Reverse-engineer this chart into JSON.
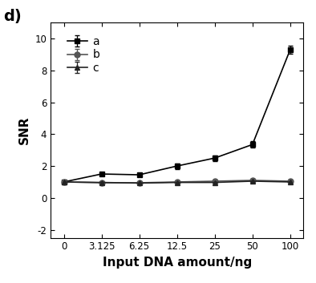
{
  "x_labels": [
    "0",
    "3.125",
    "6.25",
    "12.5",
    "25",
    "50",
    "100"
  ],
  "x_positions": [
    0,
    1,
    2,
    3,
    4,
    5,
    6
  ],
  "series_a": {
    "label": "a",
    "y": [
      1.0,
      1.5,
      1.45,
      2.0,
      2.5,
      3.35,
      9.3
    ],
    "yerr": [
      0.05,
      0.12,
      0.12,
      0.18,
      0.18,
      0.2,
      0.25
    ],
    "color": "#000000",
    "marker": "s",
    "markersize": 5
  },
  "series_b": {
    "label": "b",
    "y": [
      1.0,
      0.95,
      0.95,
      1.0,
      1.05,
      1.1,
      1.05
    ],
    "yerr": [
      0.05,
      0.05,
      0.05,
      0.06,
      0.06,
      0.08,
      0.06
    ],
    "color": "#555555",
    "marker": "o",
    "markersize": 5
  },
  "series_c": {
    "label": "c",
    "y": [
      1.0,
      0.97,
      0.93,
      0.97,
      0.97,
      1.05,
      1.0
    ],
    "yerr": [
      0.05,
      0.05,
      0.05,
      0.05,
      0.05,
      0.07,
      0.05
    ],
    "color": "#222222",
    "marker": "^",
    "markersize": 5
  },
  "xlabel": "Input DNA amount/ng",
  "ylabel": "SNR",
  "panel_label": "d)",
  "ylim": [
    -2.5,
    11.0
  ],
  "yticks": [
    -2,
    0,
    2,
    4,
    6,
    8,
    10
  ],
  "background_color": "#ffffff",
  "linewidth": 1.2,
  "legend_fontsize": 10,
  "axis_label_fontsize": 11,
  "tick_fontsize": 8.5,
  "panel_label_fontsize": 14
}
